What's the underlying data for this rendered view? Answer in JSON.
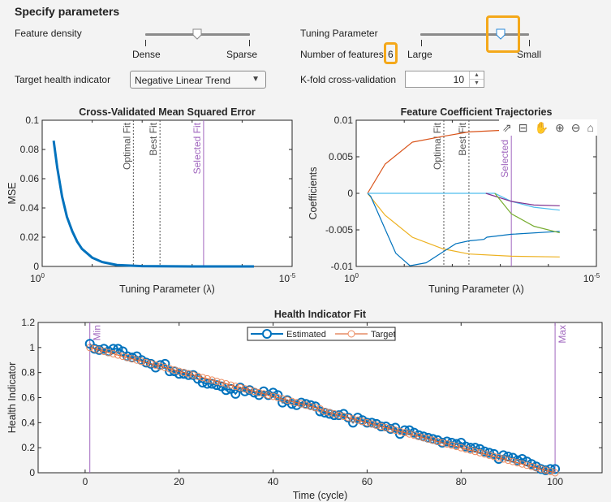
{
  "panel": {
    "title": "Specify parameters",
    "feature_density": {
      "label": "Feature density",
      "min_label": "Dense",
      "max_label": "Sparse",
      "value_fraction": 0.5
    },
    "tuning_parameter": {
      "label": "Tuning Parameter",
      "min_label": "Large",
      "max_label": "Small",
      "value_fraction": 0.74
    },
    "number_of_features": {
      "label": "Number of features",
      "value": "6"
    },
    "target_health_indicator": {
      "label": "Target health indicator",
      "selected": "Negative Linear Trend",
      "arrow_icon": "triangle-down-icon"
    },
    "kfold": {
      "label": "K-fold cross-validation",
      "value": "10",
      "up_icon": "▲",
      "down_icon": "▼"
    },
    "highlight_color": "#f4a81a"
  },
  "toolbar": {
    "icons": [
      {
        "name": "export-icon",
        "glyph": "⇗"
      },
      {
        "name": "data-tips-icon",
        "glyph": "⊟"
      },
      {
        "name": "pan-hand-icon",
        "glyph": "✋"
      },
      {
        "name": "zoom-in-icon",
        "glyph": "⊕"
      },
      {
        "name": "zoom-out-icon",
        "glyph": "⊖"
      },
      {
        "name": "home-icon",
        "glyph": "⌂"
      }
    ]
  },
  "chart_data": [
    {
      "type": "line",
      "title": "Cross-Validated Mean Squared Error",
      "xlabel": "Tuning  Parameter  (λ)",
      "ylabel": "MSE",
      "x_scale": "log",
      "x_reversed": true,
      "xlim": [
        1,
        1e-05
      ],
      "ylim": [
        0,
        0.1
      ],
      "grid": false,
      "x_tick_labels": [
        {
          "base": "10",
          "exp": "0"
        },
        {
          "base": "10",
          "exp": "-5"
        }
      ],
      "y_ticks": [
        0,
        0.02,
        0.04,
        0.06,
        0.08,
        0.1
      ],
      "y_tick_labels": [
        "0",
        "0.02",
        "0.04",
        "0.06",
        "0.08",
        "0.1"
      ],
      "series": [
        {
          "color": "#0072BD",
          "points": [
            [
              0.59,
              0.086
            ],
            [
              0.5,
              0.0676
            ],
            [
              0.4,
              0.0478
            ],
            [
              0.32,
              0.0339
            ],
            [
              0.25,
              0.024
            ],
            [
              0.2,
              0.017
            ],
            [
              0.16,
              0.012
            ],
            [
              0.1,
              0.006
            ],
            [
              0.063,
              0.003
            ],
            [
              0.032,
              0.001
            ],
            [
              0.01,
              0.0002
            ],
            [
              0.001,
              0
            ],
            [
              5.8e-05,
              0
            ]
          ]
        }
      ],
      "ref_lines": [
        {
          "label": "Optimal Fit",
          "x": 0.015,
          "color": "#555555",
          "style": "dotted"
        },
        {
          "label": "Best Fit",
          "x": 0.0044,
          "color": "#555555",
          "style": "dotted"
        },
        {
          "label": "Selected Fit",
          "x": 0.00059,
          "color": "#A066BE",
          "style": "solid"
        }
      ]
    },
    {
      "type": "line",
      "title": "Feature Coefficient Trajectories",
      "xlabel": "Tuning  Parameter  (λ)",
      "ylabel": "Coefficients",
      "x_scale": "log",
      "x_reversed": true,
      "xlim": [
        1,
        1e-05
      ],
      "ylim": [
        -0.01,
        0.01
      ],
      "grid": false,
      "x_tick_labels": [
        {
          "base": "10",
          "exp": "0"
        },
        {
          "base": "10",
          "exp": "-5"
        }
      ],
      "y_ticks": [
        -0.01,
        -0.005,
        0,
        0.005,
        0.01
      ],
      "y_tick_labels": [
        "-0.01",
        "-0.005",
        "0",
        "0.005",
        "0.01"
      ],
      "series": [
        {
          "color": "#D95319",
          "points": [
            [
              0.58,
              0
            ],
            [
              0.25,
              0.004
            ],
            [
              0.068,
              0.007
            ],
            [
              0.0155,
              0.0078
            ],
            [
              0.0045,
              0.0084
            ],
            [
              0.0011,
              0.0086
            ],
            [
              5.8e-05,
              0.0086
            ]
          ]
        },
        {
          "color": "#EDB120",
          "points": [
            [
              0.58,
              0
            ],
            [
              0.25,
              -0.003
            ],
            [
              0.068,
              -0.006
            ],
            [
              0.0155,
              -0.0076
            ],
            [
              0.0045,
              -0.0083
            ],
            [
              0.00059,
              -0.0086
            ],
            [
              5.8e-05,
              -0.0087
            ]
          ]
        },
        {
          "color": "#0072BD",
          "points": [
            [
              0.58,
              0
            ],
            [
              0.5,
              -0.0004
            ],
            [
              0.25,
              -0.0049
            ],
            [
              0.15,
              -0.0082
            ],
            [
              0.076,
              -0.0099
            ],
            [
              0.035,
              -0.0095
            ],
            [
              0.0155,
              -0.008
            ],
            [
              0.0085,
              -0.0069
            ],
            [
              0.0045,
              -0.0065
            ],
            [
              0.0022,
              -0.0063
            ],
            [
              0.0019,
              -0.006
            ],
            [
              0.00059,
              -0.0056
            ],
            [
              5.8e-05,
              -0.0052
            ]
          ]
        },
        {
          "color": "#4DBEEE",
          "points": [
            [
              0.58,
              0
            ],
            [
              0.0013,
              0
            ],
            [
              0.00059,
              -0.0011
            ],
            [
              0.0002,
              -0.0019
            ],
            [
              5.8e-05,
              -0.0023
            ]
          ]
        },
        {
          "color": "#7E2F8E",
          "points": [
            [
              0.002,
              0
            ],
            [
              0.00059,
              -0.0011
            ],
            [
              0.0002,
              -0.0016
            ],
            [
              5.8e-05,
              -0.0017
            ]
          ]
        },
        {
          "color": "#77AC30",
          "points": [
            [
              0.0013,
              0
            ],
            [
              0.00059,
              -0.0028
            ],
            [
              0.0002,
              -0.0045
            ],
            [
              5.8e-05,
              -0.0054
            ]
          ]
        }
      ],
      "ref_lines": [
        {
          "label": "Optimal Fit",
          "x": 0.015,
          "color": "#555555",
          "style": "dotted"
        },
        {
          "label": "Best Fit",
          "x": 0.0045,
          "color": "#555555",
          "style": "dotted"
        },
        {
          "label": "Selected",
          "x": 0.00059,
          "color": "#A066BE",
          "style": "solid"
        }
      ]
    },
    {
      "type": "line",
      "title": "Health Indicator Fit",
      "xlabel": "Time (cycle)",
      "ylabel": "Health Indicator",
      "xlim": [
        -10,
        110
      ],
      "ylim": [
        0,
        1.2
      ],
      "grid": false,
      "legend": "top-center",
      "x_ticks": [
        0,
        20,
        40,
        60,
        80,
        100
      ],
      "x_tick_labels": [
        "0",
        "20",
        "40",
        "60",
        "80",
        "100"
      ],
      "y_ticks": [
        0,
        0.2,
        0.4,
        0.6,
        0.8,
        1,
        1.2
      ],
      "y_tick_labels": [
        "0",
        "0.2",
        "0.4",
        "0.6",
        "0.8",
        "1",
        "1.2"
      ],
      "x_start": 1,
      "series": [
        {
          "name": "Estimated",
          "color": "#0072BD",
          "marker": "circle",
          "values": [
            1.03,
            0.99,
            0.98,
            0.99,
            0.97,
            0.99,
            0.99,
            0.97,
            0.93,
            0.92,
            0.93,
            0.9,
            0.88,
            0.87,
            0.84,
            0.86,
            0.87,
            0.81,
            0.81,
            0.79,
            0.79,
            0.78,
            0.78,
            0.75,
            0.72,
            0.71,
            0.71,
            0.7,
            0.69,
            0.66,
            0.67,
            0.63,
            0.68,
            0.65,
            0.66,
            0.64,
            0.62,
            0.65,
            0.62,
            0.64,
            0.62,
            0.56,
            0.58,
            0.55,
            0.54,
            0.56,
            0.55,
            0.54,
            0.53,
            0.49,
            0.48,
            0.47,
            0.46,
            0.46,
            0.47,
            0.44,
            0.4,
            0.44,
            0.42,
            0.4,
            0.4,
            0.39,
            0.37,
            0.37,
            0.35,
            0.36,
            0.31,
            0.34,
            0.34,
            0.32,
            0.3,
            0.29,
            0.28,
            0.27,
            0.26,
            0.24,
            0.25,
            0.24,
            0.23,
            0.24,
            0.21,
            0.2,
            0.2,
            0.19,
            0.17,
            0.16,
            0.15,
            0.11,
            0.14,
            0.13,
            0.12,
            0.1,
            0.11,
            0.09,
            0.07,
            0.05,
            0.03,
            0.02,
            0.03,
            0.03
          ]
        },
        {
          "name": "Target",
          "color": "#D95319",
          "marker": "circle",
          "values": [
            1.0,
            0.99,
            0.98,
            0.97,
            0.96,
            0.95,
            0.94,
            0.93,
            0.92,
            0.91,
            0.9,
            0.89,
            0.88,
            0.87,
            0.86,
            0.85,
            0.84,
            0.83,
            0.82,
            0.81,
            0.8,
            0.79,
            0.78,
            0.77,
            0.76,
            0.75,
            0.74,
            0.73,
            0.72,
            0.71,
            0.7,
            0.69,
            0.68,
            0.67,
            0.66,
            0.65,
            0.64,
            0.63,
            0.62,
            0.61,
            0.6,
            0.59,
            0.58,
            0.57,
            0.56,
            0.55,
            0.54,
            0.53,
            0.52,
            0.51,
            0.49,
            0.48,
            0.47,
            0.46,
            0.45,
            0.44,
            0.43,
            0.42,
            0.41,
            0.4,
            0.39,
            0.38,
            0.37,
            0.36,
            0.35,
            0.34,
            0.33,
            0.32,
            0.31,
            0.3,
            0.29,
            0.28,
            0.27,
            0.26,
            0.25,
            0.24,
            0.23,
            0.22,
            0.21,
            0.2,
            0.19,
            0.18,
            0.17,
            0.16,
            0.15,
            0.14,
            0.13,
            0.12,
            0.11,
            0.1,
            0.09,
            0.08,
            0.07,
            0.06,
            0.05,
            0.04,
            0.03,
            0.02,
            0.01,
            0.0
          ]
        }
      ],
      "ref_lines": [
        {
          "label": "Min",
          "x": 1,
          "color": "#A066BE",
          "style": "solid"
        },
        {
          "label": "Max",
          "x": 100,
          "color": "#A066BE",
          "style": "solid"
        }
      ]
    }
  ]
}
